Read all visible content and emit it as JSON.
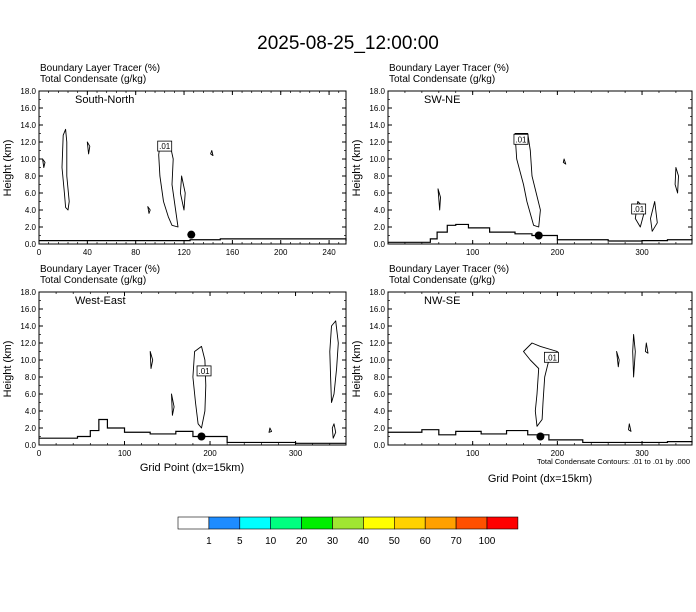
{
  "main_title": "2025-08-25_12:00:00",
  "panel_header": {
    "line1": "Boundary Layer Tracer   (%)",
    "line2": "Total Condensate   (g/kg)"
  },
  "y_axis_label": "Height (km)",
  "x_axis_label": "Grid Point (dx=15km)",
  "footnote": "Total Condensate Contours: .01 to .01 by .000",
  "colorbar": {
    "colors": [
      "#ffffff",
      "#1e8cff",
      "#00ffff",
      "#00ff80",
      "#00ee00",
      "#a0e632",
      "#ffff00",
      "#ffd200",
      "#ffa000",
      "#ff5000",
      "#ff0000"
    ],
    "labels": [
      "1",
      "5",
      "10",
      "20",
      "30",
      "40",
      "50",
      "60",
      "70",
      "100"
    ]
  },
  "chart_data": [
    {
      "type": "contour",
      "title": "South-North",
      "xlim": [
        0,
        254
      ],
      "ylim": [
        0,
        18
      ],
      "xticks": [
        0,
        40,
        80,
        120,
        160,
        200,
        240
      ],
      "yticks": [
        "0.0",
        "2.0",
        "4.0",
        "6.0",
        "8.0",
        "10.0",
        "12.0",
        "14.0",
        "16.0",
        "18.0"
      ],
      "contour_label": ".01",
      "contour_label_at": [
        104,
        11.4
      ],
      "marker": {
        "x": 126,
        "y": 1.1
      },
      "terrain": [
        [
          0,
          0.4
        ],
        [
          100,
          0.4
        ],
        [
          125,
          0.5
        ],
        [
          150,
          0.6
        ],
        [
          180,
          0.6
        ],
        [
          254,
          0.35
        ]
      ],
      "contours": [
        [
          [
            20,
            12.8
          ],
          [
            22,
            13.5
          ],
          [
            23,
            12
          ],
          [
            23,
            8
          ],
          [
            25,
            5
          ],
          [
            24,
            4
          ],
          [
            22,
            4.3
          ],
          [
            21,
            6
          ],
          [
            19,
            9
          ],
          [
            20,
            12.8
          ]
        ],
        [
          [
            100,
            11.6
          ],
          [
            108,
            12
          ],
          [
            111,
            10
          ],
          [
            110,
            7
          ],
          [
            113,
            4
          ],
          [
            115,
            2
          ],
          [
            110,
            2.2
          ],
          [
            107,
            3.2
          ],
          [
            103,
            5
          ],
          [
            100,
            8
          ],
          [
            99,
            10.5
          ],
          [
            100,
            11.6
          ]
        ],
        [
          [
            118,
            8
          ],
          [
            121,
            6
          ],
          [
            120,
            4
          ],
          [
            117,
            6
          ],
          [
            118,
            8
          ]
        ],
        [
          [
            3,
            10
          ],
          [
            4,
            9
          ],
          [
            5,
            9.6
          ],
          [
            3,
            10
          ]
        ],
        [
          [
            40,
            12
          ],
          [
            42,
            11.5
          ],
          [
            41,
            10.6
          ],
          [
            40,
            12
          ]
        ],
        [
          [
            90,
            4.4
          ],
          [
            92,
            4
          ],
          [
            91,
            3.6
          ],
          [
            90,
            4.4
          ]
        ],
        [
          [
            143,
            11
          ],
          [
            144,
            10.4
          ],
          [
            142,
            10.6
          ],
          [
            143,
            11
          ]
        ]
      ]
    },
    {
      "type": "contour",
      "title": "SW-NE",
      "xlim": [
        0,
        359
      ],
      "ylim": [
        0,
        18
      ],
      "xticks": [
        100,
        200,
        300
      ],
      "yticks": [
        "0.0",
        "2.0",
        "4.0",
        "6.0",
        "8.0",
        "10.0",
        "12.0",
        "14.0",
        "16.0",
        "18.0"
      ],
      "contour_label": ".01",
      "contour_label_at": [
        157,
        12.2
      ],
      "second_contour_label": ".01",
      "second_contour_label_at": [
        296,
        4.0
      ],
      "marker": {
        "x": 178,
        "y": 1.0
      },
      "terrain": [
        [
          0,
          0.2
        ],
        [
          40,
          0.2
        ],
        [
          50,
          0.6
        ],
        [
          58,
          1.4
        ],
        [
          70,
          2.2
        ],
        [
          80,
          2.3
        ],
        [
          95,
          1.9
        ],
        [
          120,
          1.4
        ],
        [
          150,
          1.2
        ],
        [
          170,
          1.0
        ],
        [
          200,
          0.5
        ],
        [
          260,
          0.35
        ],
        [
          300,
          0.4
        ],
        [
          330,
          0.5
        ],
        [
          359,
          0.6
        ]
      ],
      "contours": [
        [
          [
            150,
            13
          ],
          [
            165,
            13
          ],
          [
            168,
            11
          ],
          [
            170,
            8
          ],
          [
            180,
            4
          ],
          [
            178,
            2
          ],
          [
            172,
            2.2
          ],
          [
            164,
            5
          ],
          [
            160,
            7
          ],
          [
            152,
            10
          ],
          [
            150,
            13
          ]
        ],
        [
          [
            295,
            5
          ],
          [
            300,
            4.5
          ],
          [
            302,
            3.5
          ],
          [
            298,
            2
          ],
          [
            292,
            3
          ],
          [
            295,
            5
          ]
        ],
        [
          [
            340,
            9
          ],
          [
            343,
            8
          ],
          [
            342,
            6
          ],
          [
            339,
            7
          ],
          [
            340,
            9
          ]
        ],
        [
          [
            59,
            6.5
          ],
          [
            62,
            5.5
          ],
          [
            61,
            4
          ],
          [
            59,
            6.5
          ]
        ],
        [
          [
            315,
            5
          ],
          [
            318,
            2.5
          ],
          [
            312,
            1.5
          ],
          [
            310,
            3
          ],
          [
            315,
            5
          ]
        ],
        [
          [
            208,
            10
          ],
          [
            210,
            9.4
          ],
          [
            207,
            9.6
          ],
          [
            208,
            10
          ]
        ]
      ]
    },
    {
      "type": "contour",
      "title": "West-East",
      "xlim": [
        0,
        359
      ],
      "ylim": [
        0,
        18
      ],
      "xticks": [
        0,
        100,
        200,
        300
      ],
      "yticks": [
        "0.0",
        "2.0",
        "4.0",
        "6.0",
        "8.0",
        "10.0",
        "12.0",
        "14.0",
        "16.0",
        "18.0"
      ],
      "contour_label": ".01",
      "contour_label_at": [
        193,
        8.6
      ],
      "marker": {
        "x": 190,
        "y": 1.0
      },
      "terrain": [
        [
          0,
          0.8
        ],
        [
          30,
          0.8
        ],
        [
          45,
          1.0
        ],
        [
          60,
          1.7
        ],
        [
          70,
          3.0
        ],
        [
          80,
          2.0
        ],
        [
          100,
          1.5
        ],
        [
          130,
          1.3
        ],
        [
          160,
          1.6
        ],
        [
          180,
          1.0
        ],
        [
          220,
          0.3
        ],
        [
          260,
          0.3
        ],
        [
          300,
          0.2
        ],
        [
          359,
          0.2
        ]
      ],
      "contours": [
        [
          [
            182,
            11
          ],
          [
            190,
            11.6
          ],
          [
            194,
            10
          ],
          [
            195,
            7
          ],
          [
            194,
            4
          ],
          [
            190,
            2
          ],
          [
            186,
            2.5
          ],
          [
            183,
            5
          ],
          [
            180,
            8
          ],
          [
            182,
            11
          ]
        ],
        [
          [
            342,
            14
          ],
          [
            347,
            14.6
          ],
          [
            350,
            12
          ],
          [
            348,
            9
          ],
          [
            345,
            6
          ],
          [
            342,
            5
          ],
          [
            341,
            8
          ],
          [
            340,
            11
          ],
          [
            342,
            14
          ]
        ],
        [
          [
            130,
            11
          ],
          [
            133,
            10
          ],
          [
            131,
            9
          ],
          [
            130,
            11
          ]
        ],
        [
          [
            345,
            2.5
          ],
          [
            347,
            1.5
          ],
          [
            344,
            0.8
          ],
          [
            343,
            2
          ],
          [
            345,
            2.5
          ]
        ],
        [
          [
            155,
            6
          ],
          [
            158,
            4.5
          ],
          [
            156,
            3.5
          ],
          [
            155,
            6
          ]
        ],
        [
          [
            270,
            2
          ],
          [
            272,
            1.6
          ],
          [
            269,
            1.5
          ],
          [
            270,
            2
          ]
        ]
      ]
    },
    {
      "type": "contour",
      "title": "NW-SE",
      "xlim": [
        0,
        359
      ],
      "ylim": [
        0,
        18
      ],
      "xticks": [
        100,
        200,
        300
      ],
      "yticks": [
        "0.0",
        "2.0",
        "4.0",
        "6.0",
        "8.0",
        "10.0",
        "12.0",
        "14.0",
        "16.0",
        "18.0"
      ],
      "contour_label": ".01",
      "contour_label_at": [
        193,
        10.2
      ],
      "marker": {
        "x": 180,
        "y": 1.0
      },
      "terrain": [
        [
          0,
          1.5
        ],
        [
          40,
          1.8
        ],
        [
          60,
          1.2
        ],
        [
          80,
          1.6
        ],
        [
          110,
          1.3
        ],
        [
          140,
          1.7
        ],
        [
          165,
          1.2
        ],
        [
          190,
          0.6
        ],
        [
          230,
          0.3
        ],
        [
          280,
          0.3
        ],
        [
          330,
          0.4
        ],
        [
          359,
          0.3
        ]
      ],
      "contours": [
        [
          [
            160,
            11
          ],
          [
            170,
            12
          ],
          [
            180,
            11.6
          ],
          [
            200,
            11
          ],
          [
            190,
            10
          ],
          [
            185,
            8
          ],
          [
            183,
            5
          ],
          [
            182,
            3
          ],
          [
            176,
            2.2
          ],
          [
            174,
            4
          ],
          [
            176,
            6
          ],
          [
            178,
            9
          ],
          [
            168,
            10
          ],
          [
            160,
            11
          ]
        ],
        [
          [
            270,
            11
          ],
          [
            273,
            10
          ],
          [
            272,
            9.2
          ],
          [
            270,
            11
          ]
        ],
        [
          [
            290,
            13
          ],
          [
            292,
            11
          ],
          [
            290,
            8
          ],
          [
            289,
            11
          ],
          [
            290,
            13
          ]
        ],
        [
          [
            305,
            12
          ],
          [
            307,
            10.8
          ],
          [
            304,
            11
          ],
          [
            305,
            12
          ]
        ],
        [
          [
            285,
            2.5
          ],
          [
            287,
            1.6
          ],
          [
            284,
            1.8
          ],
          [
            285,
            2.5
          ]
        ]
      ]
    }
  ]
}
